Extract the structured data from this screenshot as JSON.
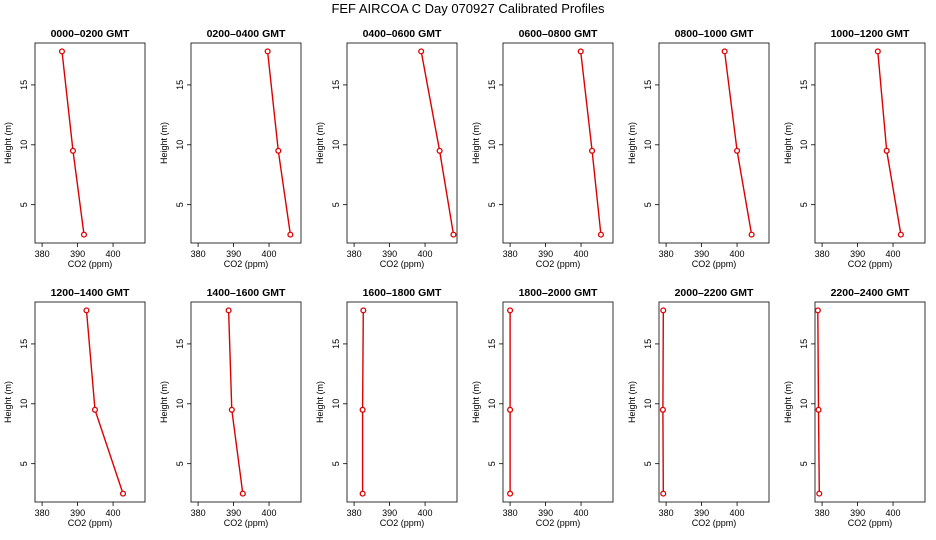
{
  "title": "FEF AIRCOA C  Day 070927  Calibrated Profiles",
  "colors": {
    "profile": "#dd0000",
    "axis": "#000000"
  },
  "chart_data": [
    {
      "type": "line",
      "title": "0000–0200 GMT",
      "xlabel": "CO2 (ppm)",
      "ylabel": "Height (m)",
      "xlim": [
        378,
        409
      ],
      "ylim": [
        1.8,
        18.5
      ],
      "xticks": [
        "380",
        "390",
        "400"
      ],
      "yticks": [
        "5",
        "10",
        "15"
      ],
      "points": [
        {
          "x": 385.6,
          "y": 17.8
        },
        {
          "x": 388.7,
          "y": 9.5
        },
        {
          "x": 391.8,
          "y": 2.5
        }
      ]
    },
    {
      "type": "line",
      "title": "0200–0400 GMT",
      "xlabel": "CO2 (ppm)",
      "ylabel": "Height (m)",
      "xlim": [
        378,
        409
      ],
      "ylim": [
        1.8,
        18.5
      ],
      "xticks": [
        "380",
        "390",
        "400"
      ],
      "yticks": [
        "5",
        "10",
        "15"
      ],
      "points": [
        {
          "x": 399.6,
          "y": 17.8
        },
        {
          "x": 402.6,
          "y": 9.5
        },
        {
          "x": 406.0,
          "y": 2.5
        }
      ]
    },
    {
      "type": "line",
      "title": "0400–0600 GMT",
      "xlabel": "CO2 (ppm)",
      "ylabel": "Height (m)",
      "xlim": [
        378,
        409
      ],
      "ylim": [
        1.8,
        18.5
      ],
      "xticks": [
        "380",
        "390",
        "400"
      ],
      "yticks": [
        "5",
        "10",
        "15"
      ],
      "points": [
        {
          "x": 398.9,
          "y": 17.8
        },
        {
          "x": 404.1,
          "y": 9.5
        },
        {
          "x": 408.0,
          "y": 2.5
        }
      ]
    },
    {
      "type": "line",
      "title": "0600–0800 GMT",
      "xlabel": "CO2 (ppm)",
      "ylabel": "Height (m)",
      "xlim": [
        378,
        409
      ],
      "ylim": [
        1.8,
        18.5
      ],
      "xticks": [
        "380",
        "390",
        "400"
      ],
      "yticks": [
        "5",
        "10",
        "15"
      ],
      "points": [
        {
          "x": 399.9,
          "y": 17.8
        },
        {
          "x": 403.1,
          "y": 9.5
        },
        {
          "x": 405.6,
          "y": 2.5
        }
      ]
    },
    {
      "type": "line",
      "title": "0800–1000 GMT",
      "xlabel": "CO2 (ppm)",
      "ylabel": "Height (m)",
      "xlim": [
        378,
        409
      ],
      "ylim": [
        1.8,
        18.5
      ],
      "xticks": [
        "380",
        "390",
        "400"
      ],
      "yticks": [
        "5",
        "10",
        "15"
      ],
      "points": [
        {
          "x": 396.5,
          "y": 17.8
        },
        {
          "x": 400.0,
          "y": 9.5
        },
        {
          "x": 404.1,
          "y": 2.5
        }
      ]
    },
    {
      "type": "line",
      "title": "1000–1200 GMT",
      "xlabel": "CO2 (ppm)",
      "ylabel": "Height (m)",
      "xlim": [
        378,
        409
      ],
      "ylim": [
        1.8,
        18.5
      ],
      "xticks": [
        "380",
        "390",
        "400"
      ],
      "yticks": [
        "5",
        "10",
        "15"
      ],
      "points": [
        {
          "x": 395.7,
          "y": 17.8
        },
        {
          "x": 398.2,
          "y": 9.5
        },
        {
          "x": 402.2,
          "y": 2.5
        }
      ]
    },
    {
      "type": "line",
      "title": "1200–1400 GMT",
      "xlabel": "CO2 (ppm)",
      "ylabel": "Height (m)",
      "xlim": [
        378,
        409
      ],
      "ylim": [
        1.8,
        18.5
      ],
      "xticks": [
        "380",
        "390",
        "400"
      ],
      "yticks": [
        "5",
        "10",
        "15"
      ],
      "points": [
        {
          "x": 392.5,
          "y": 17.8
        },
        {
          "x": 394.9,
          "y": 9.5
        },
        {
          "x": 402.8,
          "y": 2.5
        }
      ]
    },
    {
      "type": "line",
      "title": "1400–1600 GMT",
      "xlabel": "CO2 (ppm)",
      "ylabel": "Height (m)",
      "xlim": [
        378,
        409
      ],
      "ylim": [
        1.8,
        18.5
      ],
      "xticks": [
        "380",
        "390",
        "400"
      ],
      "yticks": [
        "5",
        "10",
        "15"
      ],
      "points": [
        {
          "x": 388.6,
          "y": 17.8
        },
        {
          "x": 389.5,
          "y": 9.5
        },
        {
          "x": 392.6,
          "y": 2.5
        }
      ]
    },
    {
      "type": "line",
      "title": "1600–1800 GMT",
      "xlabel": "CO2 (ppm)",
      "ylabel": "Height (m)",
      "xlim": [
        378,
        409
      ],
      "ylim": [
        1.8,
        18.5
      ],
      "xticks": [
        "380",
        "390",
        "400"
      ],
      "yticks": [
        "5",
        "10",
        "15"
      ],
      "points": [
        {
          "x": 382.6,
          "y": 17.8
        },
        {
          "x": 382.4,
          "y": 9.5
        },
        {
          "x": 382.4,
          "y": 2.5
        }
      ]
    },
    {
      "type": "line",
      "title": "1800–2000 GMT",
      "xlabel": "CO2 (ppm)",
      "ylabel": "Height (m)",
      "xlim": [
        378,
        409
      ],
      "ylim": [
        1.8,
        18.5
      ],
      "xticks": [
        "380",
        "390",
        "400"
      ],
      "yticks": [
        "5",
        "10",
        "15"
      ],
      "points": [
        {
          "x": 380.0,
          "y": 17.8
        },
        {
          "x": 380.0,
          "y": 9.5
        },
        {
          "x": 380.0,
          "y": 2.5
        }
      ]
    },
    {
      "type": "line",
      "title": "2000–2200 GMT",
      "xlabel": "CO2 (ppm)",
      "ylabel": "Height (m)",
      "xlim": [
        378,
        409
      ],
      "ylim": [
        1.8,
        18.5
      ],
      "xticks": [
        "380",
        "390",
        "400"
      ],
      "yticks": [
        "5",
        "10",
        "15"
      ],
      "points": [
        {
          "x": 379.2,
          "y": 17.8
        },
        {
          "x": 379.1,
          "y": 9.5
        },
        {
          "x": 379.2,
          "y": 2.5
        }
      ]
    },
    {
      "type": "line",
      "title": "2200–2400 GMT",
      "xlabel": "CO2 (ppm)",
      "ylabel": "Height (m)",
      "xlim": [
        378,
        409
      ],
      "ylim": [
        1.8,
        18.5
      ],
      "xticks": [
        "380",
        "390",
        "400"
      ],
      "yticks": [
        "5",
        "10",
        "15"
      ],
      "points": [
        {
          "x": 378.8,
          "y": 17.8
        },
        {
          "x": 379.0,
          "y": 9.5
        },
        {
          "x": 379.2,
          "y": 2.5
        }
      ]
    }
  ]
}
